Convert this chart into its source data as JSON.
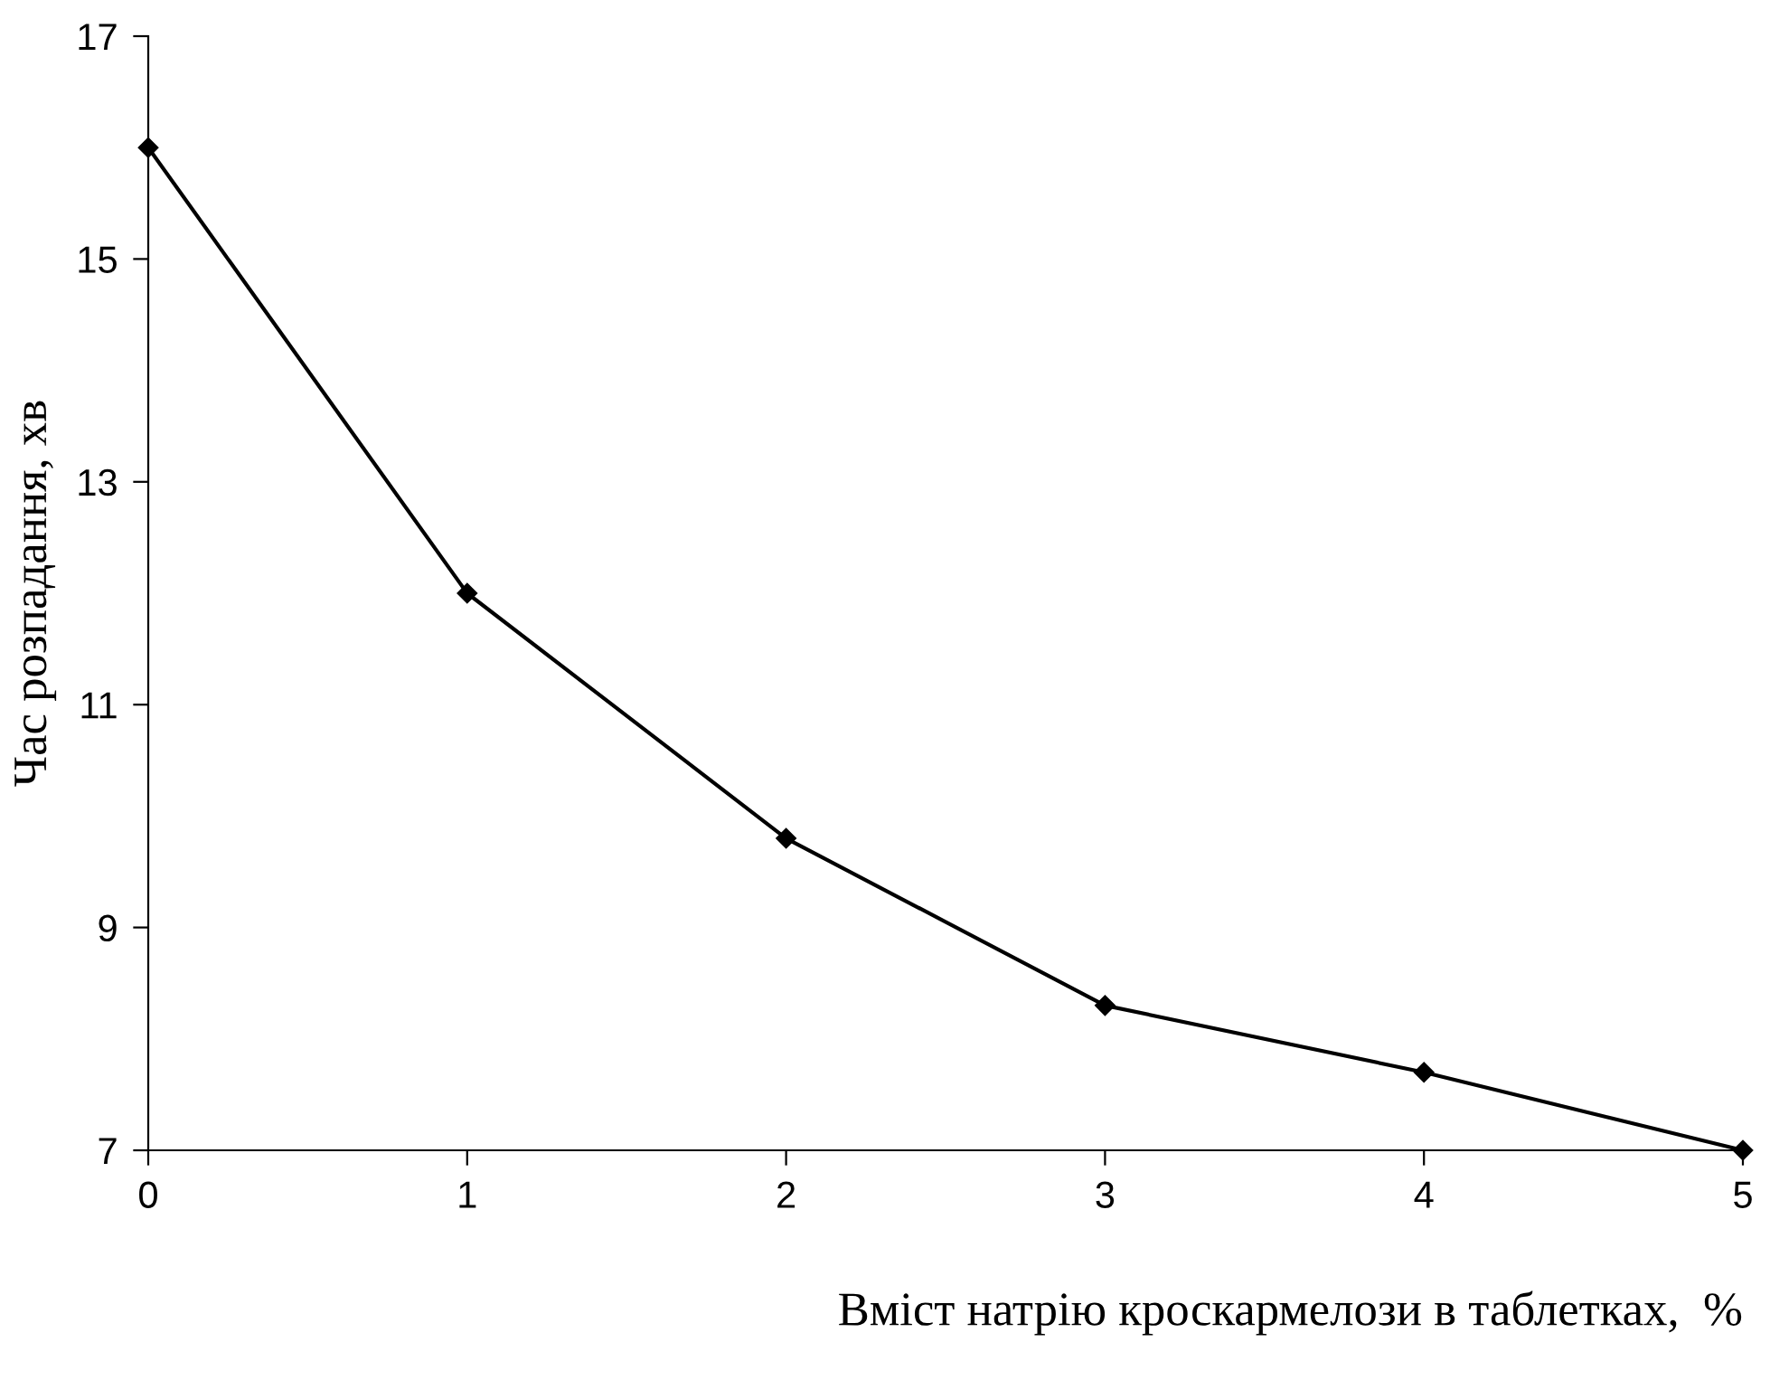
{
  "chart_data": {
    "type": "line",
    "xlabel": "Вміст натрію кроскармелози в таблетках,  %",
    "ylabel": "Час розпадання, хв",
    "x": [
      0,
      1,
      2,
      3,
      4,
      5
    ],
    "series": [
      {
        "color": "#000000",
        "values": [
          16,
          12,
          9.8,
          8.3,
          7.7,
          7
        ]
      }
    ],
    "xlim": [
      0,
      5
    ],
    "xticks": [
      0,
      1,
      2,
      3,
      4,
      5
    ],
    "ylim": [
      7,
      17
    ],
    "yticks": [
      7,
      9,
      11,
      13,
      15,
      17
    ],
    "marker": "diamond",
    "line_style": "solid",
    "grid": false
  }
}
